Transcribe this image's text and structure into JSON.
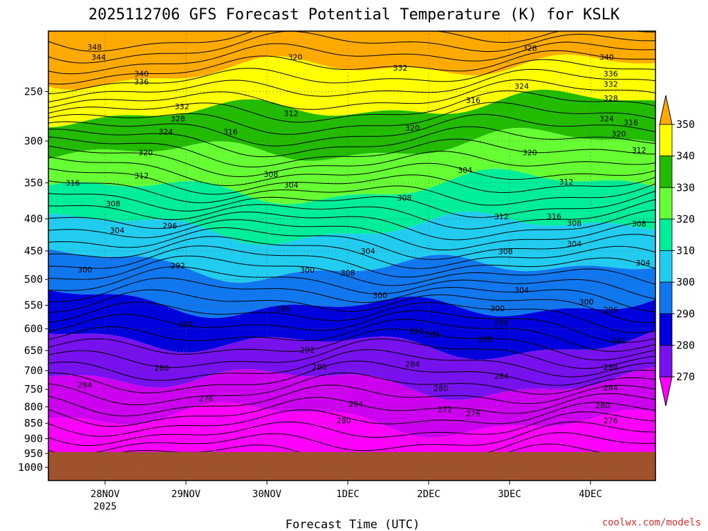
{
  "chart_data": {
    "type": "contour",
    "title": "2025112706 GFS Forecast Potential Temperature (K) for KSLK",
    "xlabel": "Forecast Time (UTC)",
    "ylabel": "",
    "credit": "coolwx.com/models",
    "y_ticks": [
      "250",
      "300",
      "350",
      "400",
      "450",
      "500",
      "550",
      "600",
      "650",
      "700",
      "750",
      "800",
      "850",
      "900",
      "950",
      "1000"
    ],
    "y_tick_values": [
      250,
      300,
      350,
      400,
      450,
      500,
      550,
      600,
      650,
      700,
      750,
      800,
      850,
      900,
      950,
      1000
    ],
    "ylim": [
      200,
      1050
    ],
    "y_scale": "log",
    "x_ticks": [
      {
        "label": "28NOV",
        "sub": "2025"
      },
      {
        "label": "29NOV",
        "sub": ""
      },
      {
        "label": "30NOV",
        "sub": ""
      },
      {
        "label": "1DEC",
        "sub": ""
      },
      {
        "label": "2DEC",
        "sub": ""
      },
      {
        "label": "3DEC",
        "sub": ""
      },
      {
        "label": "4DEC",
        "sub": ""
      }
    ],
    "grid": true,
    "legend": {
      "placement": "right",
      "levels": [
        350,
        340,
        330,
        320,
        310,
        300,
        290,
        280,
        270
      ],
      "labels": [
        "350",
        "340",
        "330",
        "320",
        "310",
        "300",
        "290",
        "280",
        "270"
      ],
      "colors": [
        "#ffaa00",
        "#ffff00",
        "#22bb00",
        "#66ff33",
        "#00ee99",
        "#22ccee",
        "#1177ee",
        "#0000dd",
        "#7711ee",
        "#cc00ee",
        "#ff00ff"
      ]
    },
    "contour_labels": [
      {
        "text": "348",
        "t": 0.37,
        "p": 212
      },
      {
        "text": "344",
        "t": 0.42,
        "p": 220
      },
      {
        "text": "340",
        "t": 0.95,
        "p": 234
      },
      {
        "text": "336",
        "t": 0.95,
        "p": 241
      },
      {
        "text": "332",
        "t": 1.45,
        "p": 264
      },
      {
        "text": "328",
        "t": 1.4,
        "p": 276
      },
      {
        "text": "324",
        "t": 1.25,
        "p": 290
      },
      {
        "text": "320",
        "t": 1.0,
        "p": 313
      },
      {
        "text": "316",
        "t": 0.1,
        "p": 350
      },
      {
        "text": "312",
        "t": 0.95,
        "p": 341
      },
      {
        "text": "308",
        "t": 0.6,
        "p": 378
      },
      {
        "text": "304",
        "t": 0.65,
        "p": 417
      },
      {
        "text": "300",
        "t": 0.25,
        "p": 482
      },
      {
        "text": "296",
        "t": 1.3,
        "p": 410
      },
      {
        "text": "292",
        "t": 1.4,
        "p": 475
      },
      {
        "text": "288",
        "t": 1.5,
        "p": 590
      },
      {
        "text": "284",
        "t": 0.25,
        "p": 737
      },
      {
        "text": "280",
        "t": 1.2,
        "p": 693
      },
      {
        "text": "276",
        "t": 1.75,
        "p": 776
      },
      {
        "text": "320",
        "t": 2.85,
        "p": 220
      },
      {
        "text": "316",
        "t": 2.05,
        "p": 290
      },
      {
        "text": "312",
        "t": 2.8,
        "p": 271
      },
      {
        "text": "308",
        "t": 2.55,
        "p": 339
      },
      {
        "text": "304",
        "t": 2.8,
        "p": 353
      },
      {
        "text": "300",
        "t": 3.0,
        "p": 483
      },
      {
        "text": "296",
        "t": 2.7,
        "p": 557
      },
      {
        "text": "292",
        "t": 3.0,
        "p": 648
      },
      {
        "text": "288",
        "t": 3.15,
        "p": 690
      },
      {
        "text": "284",
        "t": 3.6,
        "p": 791
      },
      {
        "text": "280",
        "t": 3.45,
        "p": 841
      },
      {
        "text": "308",
        "t": 3.5,
        "p": 488
      },
      {
        "text": "304",
        "t": 3.75,
        "p": 450
      },
      {
        "text": "300",
        "t": 3.9,
        "p": 530
      },
      {
        "text": "292",
        "t": 4.35,
        "p": 605
      },
      {
        "text": "288",
        "t": 4.55,
        "p": 612
      },
      {
        "text": "284",
        "t": 4.3,
        "p": 683
      },
      {
        "text": "280",
        "t": 4.65,
        "p": 747
      },
      {
        "text": "272",
        "t": 4.7,
        "p": 807
      },
      {
        "text": "276",
        "t": 5.05,
        "p": 820
      },
      {
        "text": "332",
        "t": 4.15,
        "p": 229
      },
      {
        "text": "320",
        "t": 4.3,
        "p": 286
      },
      {
        "text": "316",
        "t": 5.05,
        "p": 258
      },
      {
        "text": "308",
        "t": 4.2,
        "p": 370
      },
      {
        "text": "304",
        "t": 4.95,
        "p": 334
      },
      {
        "text": "312",
        "t": 5.4,
        "p": 396
      },
      {
        "text": "308",
        "t": 5.45,
        "p": 451
      },
      {
        "text": "304",
        "t": 5.65,
        "p": 520
      },
      {
        "text": "300",
        "t": 5.35,
        "p": 556
      },
      {
        "text": "296",
        "t": 5.4,
        "p": 586
      },
      {
        "text": "288",
        "t": 5.2,
        "p": 623
      },
      {
        "text": "284",
        "t": 5.4,
        "p": 714
      },
      {
        "text": "328",
        "t": 5.75,
        "p": 213
      },
      {
        "text": "324",
        "t": 5.65,
        "p": 245
      },
      {
        "text": "320",
        "t": 5.75,
        "p": 313
      },
      {
        "text": "316",
        "t": 6.05,
        "p": 396
      },
      {
        "text": "312",
        "t": 6.2,
        "p": 349
      },
      {
        "text": "308",
        "t": 6.3,
        "p": 406
      },
      {
        "text": "304",
        "t": 6.3,
        "p": 438
      },
      {
        "text": "300",
        "t": 6.45,
        "p": 543
      },
      {
        "text": "296",
        "t": 6.75,
        "p": 559
      },
      {
        "text": "292",
        "t": 6.85,
        "p": 626
      },
      {
        "text": "288",
        "t": 6.75,
        "p": 691
      },
      {
        "text": "284",
        "t": 6.75,
        "p": 745
      },
      {
        "text": "280",
        "t": 6.65,
        "p": 796
      },
      {
        "text": "276",
        "t": 6.75,
        "p": 841
      },
      {
        "text": "340",
        "t": 6.7,
        "p": 220
      },
      {
        "text": "336",
        "t": 6.75,
        "p": 234
      },
      {
        "text": "332",
        "t": 6.75,
        "p": 243
      },
      {
        "text": "328",
        "t": 6.75,
        "p": 256
      },
      {
        "text": "324",
        "t": 6.7,
        "p": 276
      },
      {
        "text": "320",
        "t": 6.85,
        "p": 292
      },
      {
        "text": "316",
        "t": 7.0,
        "p": 280
      },
      {
        "text": "312",
        "t": 7.1,
        "p": 310
      },
      {
        "text": "308",
        "t": 7.1,
        "p": 407
      },
      {
        "text": "304",
        "t": 7.15,
        "p": 470
      },
      {
        "text": "300",
        "t": 7.4,
        "p": 516
      }
    ]
  }
}
